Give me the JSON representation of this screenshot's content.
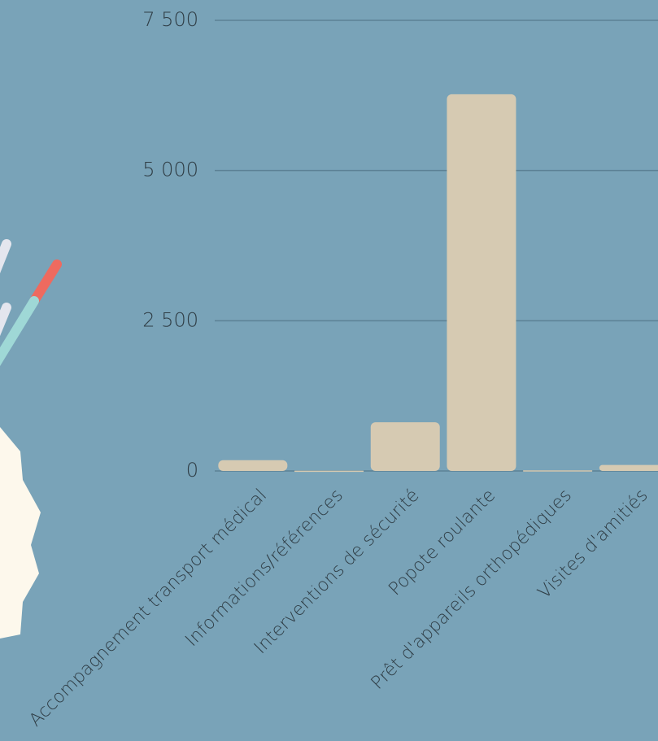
{
  "chart_data": {
    "type": "bar",
    "categories": [
      "Accompagnement transport médical",
      "Informations/références",
      "Interventions de sécurité",
      "Popote roulante",
      "Prêt d'appareils orthopédiques",
      "Visites d'amitiés"
    ],
    "values": [
      180,
      5,
      810,
      6270,
      10,
      100
    ],
    "color": "#d6cab2",
    "ylim": [
      0,
      7500
    ],
    "yticks": [
      0,
      {
        "value": 2500,
        "label": "2 500"
      },
      {
        "value": 5000,
        "label": "5 000"
      },
      {
        "value": 7500,
        "label": "7 500"
      }
    ],
    "grid": true
  }
}
